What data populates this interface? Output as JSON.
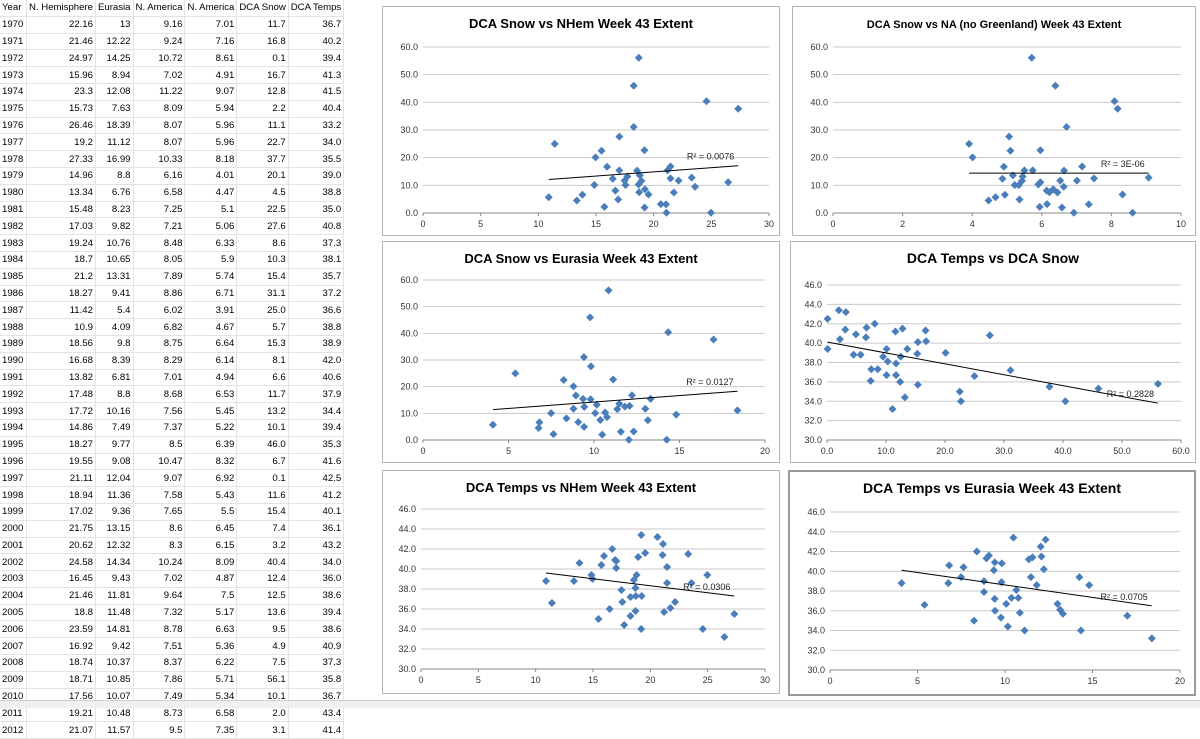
{
  "sheet": {
    "headers": [
      "Year",
      "N. Hemisphere",
      "Eurasia",
      "N. America",
      "N. America",
      "DCA Snow",
      "DCA Temps"
    ],
    "rows": [
      [
        "1970",
        "22.16",
        "13",
        "9.16",
        "7.01",
        "11.7",
        "36.7"
      ],
      [
        "1971",
        "21.46",
        "12.22",
        "9.24",
        "7.16",
        "16.8",
        "40.2"
      ],
      [
        "1972",
        "24.97",
        "14.25",
        "10.72",
        "8.61",
        "0.1",
        "39.4"
      ],
      [
        "1973",
        "15.96",
        "8.94",
        "7.02",
        "4.91",
        "16.7",
        "41.3"
      ],
      [
        "1974",
        "23.3",
        "12.08",
        "11.22",
        "9.07",
        "12.8",
        "41.5"
      ],
      [
        "1975",
        "15.73",
        "7.63",
        "8.09",
        "5.94",
        "2.2",
        "40.4"
      ],
      [
        "1976",
        "26.46",
        "18.39",
        "8.07",
        "5.96",
        "11.1",
        "33.2"
      ],
      [
        "1977",
        "19.2",
        "11.12",
        "8.07",
        "5.96",
        "22.7",
        "34.0"
      ],
      [
        "1978",
        "27.33",
        "16.99",
        "10.33",
        "8.18",
        "37.7",
        "35.5"
      ],
      [
        "1979",
        "14.96",
        "8.8",
        "6.16",
        "4.01",
        "20.1",
        "39.0"
      ],
      [
        "1980",
        "13.34",
        "6.76",
        "6.58",
        "4.47",
        "4.5",
        "38.8"
      ],
      [
        "1981",
        "15.48",
        "8.23",
        "7.25",
        "5.1",
        "22.5",
        "35.0"
      ],
      [
        "1982",
        "17.03",
        "9.82",
        "7.21",
        "5.06",
        "27.6",
        "40.8"
      ],
      [
        "1983",
        "19.24",
        "10.76",
        "8.48",
        "6.33",
        "8.6",
        "37.3"
      ],
      [
        "1984",
        "18.7",
        "10.65",
        "8.05",
        "5.9",
        "10.3",
        "38.1"
      ],
      [
        "1985",
        "21.2",
        "13.31",
        "7.89",
        "5.74",
        "15.4",
        "35.7"
      ],
      [
        "1986",
        "18.27",
        "9.41",
        "8.86",
        "6.71",
        "31.1",
        "37.2"
      ],
      [
        "1987",
        "11.42",
        "5.4",
        "6.02",
        "3.91",
        "25.0",
        "36.6"
      ],
      [
        "1988",
        "10.9",
        "4.09",
        "6.82",
        "4.67",
        "5.7",
        "38.8"
      ],
      [
        "1989",
        "18.56",
        "9.8",
        "8.75",
        "6.64",
        "15.3",
        "38.9"
      ],
      [
        "1990",
        "16.68",
        "8.39",
        "8.29",
        "6.14",
        "8.1",
        "42.0"
      ],
      [
        "1991",
        "13.82",
        "6.81",
        "7.01",
        "4.94",
        "6.6",
        "40.6"
      ],
      [
        "1992",
        "17.48",
        "8.8",
        "8.68",
        "6.53",
        "11.7",
        "37.9"
      ],
      [
        "1993",
        "17.72",
        "10.16",
        "7.56",
        "5.45",
        "13.2",
        "34.4"
      ],
      [
        "1994",
        "14.86",
        "7.49",
        "7.37",
        "5.22",
        "10.1",
        "39.4"
      ],
      [
        "1995",
        "18.27",
        "9.77",
        "8.5",
        "6.39",
        "46.0",
        "35.3"
      ],
      [
        "1996",
        "19.55",
        "9.08",
        "10.47",
        "8.32",
        "6.7",
        "41.6"
      ],
      [
        "1997",
        "21.11",
        "12.04",
        "9.07",
        "6.92",
        "0.1",
        "42.5"
      ],
      [
        "1998",
        "18.94",
        "11.36",
        "7.58",
        "5.43",
        "11.6",
        "41.2"
      ],
      [
        "1999",
        "17.02",
        "9.36",
        "7.65",
        "5.5",
        "15.4",
        "40.1"
      ],
      [
        "2000",
        "21.75",
        "13.15",
        "8.6",
        "6.45",
        "7.4",
        "36.1"
      ],
      [
        "2001",
        "20.62",
        "12.32",
        "8.3",
        "6.15",
        "3.2",
        "43.2"
      ],
      [
        "2002",
        "24.58",
        "14.34",
        "10.24",
        "8.09",
        "40.4",
        "34.0"
      ],
      [
        "2003",
        "16.45",
        "9.43",
        "7.02",
        "4.87",
        "12.4",
        "36.0"
      ],
      [
        "2004",
        "21.46",
        "11.81",
        "9.64",
        "7.5",
        "12.5",
        "38.6"
      ],
      [
        "2005",
        "18.8",
        "11.48",
        "7.32",
        "5.17",
        "13.6",
        "39.4"
      ],
      [
        "2006",
        "23.59",
        "14.81",
        "8.78",
        "6.63",
        "9.5",
        "38.6"
      ],
      [
        "2007",
        "16.92",
        "9.42",
        "7.51",
        "5.36",
        "4.9",
        "40.9"
      ],
      [
        "2008",
        "18.74",
        "10.37",
        "8.37",
        "6.22",
        "7.5",
        "37.3"
      ],
      [
        "2009",
        "18.71",
        "10.85",
        "7.86",
        "5.71",
        "56.1",
        "35.8"
      ],
      [
        "2010",
        "17.56",
        "10.07",
        "7.49",
        "5.34",
        "10.1",
        "36.7"
      ],
      [
        "2011",
        "19.21",
        "10.48",
        "8.73",
        "6.58",
        "2.0",
        "43.4"
      ],
      [
        "2012",
        "21.07",
        "11.57",
        "9.5",
        "7.35",
        "3.1",
        "41.4"
      ]
    ]
  },
  "colors": {
    "marker": "#4a7ebb",
    "trend": "#000000",
    "grid": "#c9c9c9"
  },
  "chart_data": [
    {
      "id": "nhem-snow",
      "type": "scatter",
      "title": "DCA Snow vs NHem Week 43 Extent",
      "x_col": 1,
      "y_col": 5,
      "xlim": [
        0,
        30
      ],
      "xticks": [
        0,
        5,
        10,
        15,
        20,
        25,
        30
      ],
      "xtick_labels": [
        "0",
        "5",
        "10",
        "15",
        "20",
        "25",
        "30"
      ],
      "ylim": [
        0,
        60
      ],
      "yticks": [
        0,
        10,
        20,
        30,
        40,
        50,
        60
      ],
      "ytick_labels": [
        "0.0",
        "10.0",
        "20.0",
        "30.0",
        "40.0",
        "50.0",
        "60.0"
      ],
      "grid": true,
      "trendline": {
        "x": [
          10.9,
          27.33
        ],
        "y": [
          12.1,
          17.1
        ]
      },
      "r2_label": "R² = 0.0076"
    },
    {
      "id": "na-snow",
      "type": "scatter",
      "title": "DCA Snow vs NA (no Greenland) Week 43 Extent",
      "x_col": 4,
      "y_col": 5,
      "xlim": [
        0,
        10
      ],
      "xticks": [
        0,
        2,
        4,
        6,
        8,
        10
      ],
      "xtick_labels": [
        "0",
        "2",
        "4",
        "6",
        "8",
        "10"
      ],
      "ylim": [
        0,
        60
      ],
      "yticks": [
        0,
        10,
        20,
        30,
        40,
        50,
        60
      ],
      "ytick_labels": [
        "0.0",
        "10.0",
        "20.0",
        "30.0",
        "40.0",
        "50.0",
        "60.0"
      ],
      "grid": true,
      "trendline": {
        "x": [
          3.91,
          9.07
        ],
        "y": [
          14.4,
          14.4
        ]
      },
      "r2_label": "R² = 3E-06"
    },
    {
      "id": "eurasia-snow",
      "type": "scatter",
      "title": "DCA Snow vs Eurasia Week 43 Extent",
      "x_col": 2,
      "y_col": 5,
      "xlim": [
        0,
        20
      ],
      "xticks": [
        0,
        5,
        10,
        15,
        20
      ],
      "xtick_labels": [
        "0",
        "5",
        "10",
        "15",
        "20"
      ],
      "ylim": [
        0,
        60
      ],
      "yticks": [
        0,
        10,
        20,
        30,
        40,
        50,
        60
      ],
      "ytick_labels": [
        "0.0",
        "10.0",
        "20.0",
        "30.0",
        "40.0",
        "50.0",
        "60.0"
      ],
      "grid": true,
      "trendline": {
        "x": [
          4.09,
          18.39
        ],
        "y": [
          11.4,
          18.3
        ]
      },
      "r2_label": "R² = 0.0127"
    },
    {
      "id": "temps-snow",
      "type": "scatter",
      "title": "DCA Temps vs DCA Snow",
      "x_col": 5,
      "y_col": 6,
      "xlim": [
        0,
        60
      ],
      "xticks": [
        0,
        10,
        20,
        30,
        40,
        50,
        60
      ],
      "xtick_labels": [
        "0.0",
        "10.0",
        "20.0",
        "30.0",
        "40.0",
        "50.0",
        "60.0"
      ],
      "ylim": [
        30,
        46
      ],
      "yticks": [
        30,
        32,
        34,
        36,
        38,
        40,
        42,
        44,
        46
      ],
      "ytick_labels": [
        "30.0",
        "32.0",
        "34.0",
        "36.0",
        "38.0",
        "40.0",
        "42.0",
        "44.0",
        "46.0"
      ],
      "grid": true,
      "trendline": {
        "x": [
          0.1,
          56.1
        ],
        "y": [
          40.1,
          33.8
        ]
      },
      "r2_label": "R² = 0.2828"
    },
    {
      "id": "temps-nhem",
      "type": "scatter",
      "title": "DCA Temps vs NHem Week 43 Extent",
      "x_col": 1,
      "y_col": 6,
      "xlim": [
        0,
        30
      ],
      "xticks": [
        0,
        5,
        10,
        15,
        20,
        25,
        30
      ],
      "xtick_labels": [
        "0",
        "5",
        "10",
        "15",
        "20",
        "25",
        "30"
      ],
      "ylim": [
        30,
        46
      ],
      "yticks": [
        30,
        32,
        34,
        36,
        38,
        40,
        42,
        44,
        46
      ],
      "ytick_labels": [
        "30.0",
        "32.0",
        "34.0",
        "36.0",
        "38.0",
        "40.0",
        "42.0",
        "44.0",
        "46.0"
      ],
      "grid": true,
      "trendline": {
        "x": [
          10.9,
          27.33
        ],
        "y": [
          39.6,
          37.3
        ]
      },
      "r2_label": "R² = 0.0306"
    },
    {
      "id": "temps-eurasia",
      "type": "scatter",
      "title": "DCA Temps vs Eurasia Week 43 Extent",
      "x_col": 2,
      "y_col": 6,
      "xlim": [
        0,
        20
      ],
      "xticks": [
        0,
        5,
        10,
        15,
        20
      ],
      "xtick_labels": [
        "0",
        "5",
        "10",
        "15",
        "20"
      ],
      "ylim": [
        30,
        46
      ],
      "yticks": [
        30,
        32,
        34,
        36,
        38,
        40,
        42,
        44,
        46
      ],
      "ytick_labels": [
        "30.0",
        "32.0",
        "34.0",
        "36.0",
        "38.0",
        "40.0",
        "42.0",
        "44.0",
        "46.0"
      ],
      "grid": true,
      "trendline": {
        "x": [
          4.09,
          18.39
        ],
        "y": [
          40.1,
          36.5
        ]
      },
      "r2_label": "R² = 0.0705"
    }
  ]
}
